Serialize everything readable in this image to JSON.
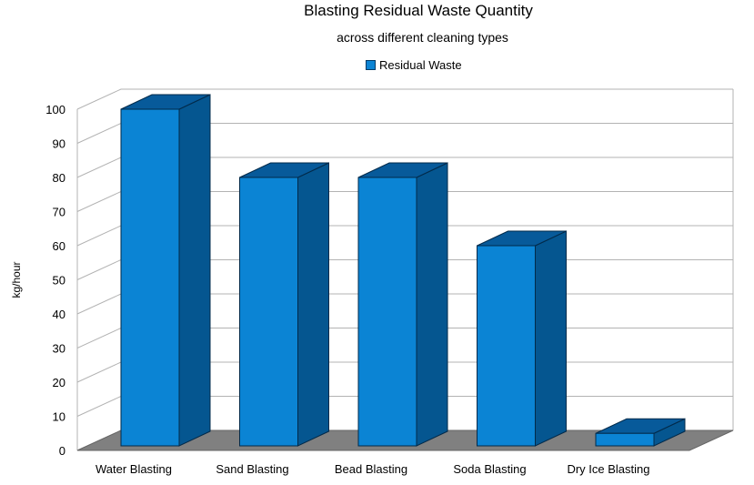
{
  "chart_data": {
    "type": "bar",
    "title": "Blasting Residual Waste Quantity",
    "subtitle": "across different cleaning types",
    "xlabel": "",
    "ylabel": "kg/hour",
    "categories": [
      "Water Blasting",
      "Sand Blasting",
      "Bead Blasting",
      "Soda Blasting",
      "Dry Ice Blasting"
    ],
    "series": [
      {
        "name": "Residual Waste",
        "values": [
          100,
          80,
          80,
          60,
          5
        ]
      }
    ],
    "ylim": [
      0,
      100
    ],
    "yticks": [
      0,
      10,
      20,
      30,
      40,
      50,
      60,
      70,
      80,
      90,
      100
    ],
    "grid": true,
    "legend": "top",
    "style": "3d",
    "colors": {
      "bar_front": "#0b84d4",
      "bar_top": "#075a9a",
      "bar_side": "#055690",
      "floor": "#808080",
      "grid": "#b3b3b3"
    }
  }
}
